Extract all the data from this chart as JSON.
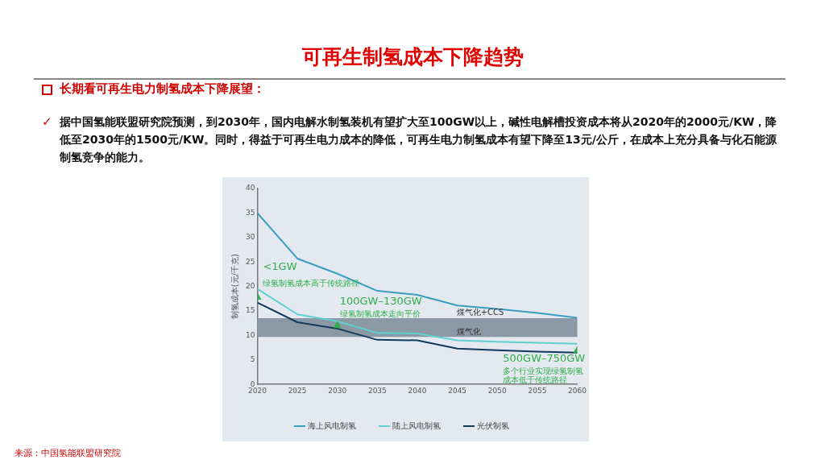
{
  "chart_data": {
    "type": "line",
    "title": "可再生制氢成本下降趋势",
    "subtitle": "长期看可再生电力制氢成本下降展望：",
    "ylabel": "制氢成本(元/千克)",
    "x": [
      2020,
      2025,
      2030,
      2035,
      2040,
      2045,
      2050,
      2055,
      2060
    ],
    "xlim": [
      2020,
      2060
    ],
    "xticks": [
      2020,
      2025,
      2030,
      2035,
      2040,
      2045,
      2050,
      2055,
      2060
    ],
    "ylim": [
      0,
      40
    ],
    "yticks": [
      0,
      5,
      10,
      15,
      20,
      25,
      30,
      35,
      40
    ],
    "grid": false,
    "legend": "bottom",
    "series": [
      {
        "name": "海上风电制氢",
        "color": "#3a9ec0",
        "values": [
          35,
          25.7,
          22.6,
          19.1,
          18.3,
          16.1,
          15.4,
          14.6,
          13.6
        ]
      },
      {
        "name": "陆上风电制氢",
        "color": "#5fcfcf",
        "values": [
          19.5,
          14.3,
          12.9,
          10.5,
          10.4,
          9.0,
          8.7,
          8.5,
          8.3
        ]
      },
      {
        "name": "光伏制氢",
        "color": "#143a5a",
        "values": [
          16.7,
          12.7,
          11.4,
          9.1,
          9.0,
          7.3,
          7.0,
          6.7,
          6.5
        ]
      },
      {
        "type": "scatter",
        "marker": "triangle",
        "color": "#2fae4a",
        "x": [
          2020,
          2030,
          2060
        ],
        "values": [
          17.8,
          12,
          6.9
        ]
      }
    ],
    "bands": [
      {
        "axis": "y",
        "from": 9.7,
        "to": 13.5,
        "color": "#8b98a5"
      }
    ],
    "annotations": [
      "据中国氢能联盟研究院预测，到2030年，国内电解水制氢装机有望扩大至100GW以上，碱性电解槽投资成本将从2020年的2000元/KW，降低至2030年的1500元/KW。同时，得益于可再生电力成本的降低，可再生电力制氢成本有望下降至13元/公斤，在成本上充分具备与化石能源制氢竞争的能力。",
      "✓",
      "<1GW",
      "绿氢制氢成本高于传统路径",
      "100GW–130GW",
      "绿氢制氢成本走向平价",
      "煤气化+CCS",
      "煤气化",
      "500GW–750GW",
      "多个行业实现绿氢制氢",
      "成本低于传统路径",
      "来源：中国氢能联盟研究院"
    ]
  }
}
